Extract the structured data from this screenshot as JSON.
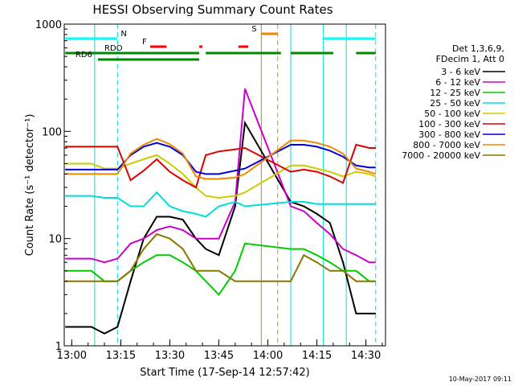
{
  "chart_data": {
    "type": "line",
    "title": "HESSI Observing Summary Count Rates",
    "xlabel": "Start Time (17-Sep-14 12:57:42)",
    "ylabel": "Count Rate (s⁻¹ detector⁻¹)",
    "yscale": "log",
    "ylim": [
      1,
      1000
    ],
    "xlim": [
      "12:57:42",
      "14:36:00"
    ],
    "x_ticks": [
      "13:00",
      "13:15",
      "13:30",
      "13:45",
      "14:00",
      "14:15",
      "14:30"
    ],
    "y_ticks": [
      "1",
      "10",
      "100",
      "1000"
    ],
    "grid": false,
    "legend_position": "right",
    "legend_header": [
      "Det 1,3,6,9,",
      "FDecim 1, Att 0"
    ],
    "x_sample": [
      "12:58",
      "13:06",
      "13:10",
      "13:14",
      "13:18",
      "13:22",
      "13:26",
      "13:30",
      "13:34",
      "13:38",
      "13:41",
      "13:45",
      "13:50",
      "13:53",
      "14:07",
      "14:11",
      "14:15",
      "14:19",
      "14:23",
      "14:27",
      "14:31",
      "14:33"
    ],
    "series": [
      {
        "name": "3 - 6 keV",
        "color": "#000000",
        "values": [
          1.5,
          1.5,
          1.3,
          1.5,
          4,
          10,
          16,
          16,
          15,
          10,
          8,
          7,
          20,
          120,
          22,
          20,
          17,
          14,
          6,
          2,
          2,
          2
        ]
      },
      {
        "name": "6 - 12 keV",
        "color": "#cc00cc",
        "values": [
          6.5,
          6.5,
          6,
          6.5,
          9,
          10,
          12,
          13,
          12,
          10,
          10,
          10,
          22,
          250,
          20,
          18,
          14,
          11,
          8,
          7,
          6,
          6
        ]
      },
      {
        "name": "12 - 25 keV",
        "color": "#00cc00",
        "values": [
          5,
          5,
          4,
          4,
          5,
          6,
          7,
          7,
          6,
          5,
          4,
          3,
          5,
          9,
          8,
          8,
          7,
          6,
          5,
          5,
          4,
          4
        ]
      },
      {
        "name": "25 - 50 keV",
        "color": "#00dddd",
        "values": [
          25,
          25,
          24,
          24,
          20,
          20,
          27,
          20,
          18,
          17,
          16,
          20,
          22,
          20,
          22,
          22,
          21,
          21,
          21,
          21,
          21,
          21
        ]
      },
      {
        "name": "50 - 100 keV",
        "color": "#cccc00",
        "values": [
          50,
          50,
          45,
          45,
          50,
          55,
          60,
          50,
          40,
          30,
          25,
          24,
          25,
          27,
          48,
          48,
          45,
          42,
          38,
          42,
          40,
          38
        ]
      },
      {
        "name": "100 - 300 keV",
        "color": "#dd0000",
        "values": [
          72,
          72,
          72,
          72,
          35,
          43,
          55,
          42,
          35,
          30,
          60,
          65,
          68,
          70,
          42,
          44,
          42,
          38,
          33,
          75,
          70,
          70
        ]
      },
      {
        "name": "300 - 800 keV",
        "color": "#0000dd",
        "values": [
          44,
          44,
          44,
          44,
          60,
          72,
          78,
          72,
          60,
          42,
          40,
          40,
          43,
          45,
          75,
          75,
          72,
          66,
          58,
          48,
          46,
          46
        ]
      },
      {
        "name": "800 - 7000 keV",
        "color": "#ee8800",
        "values": [
          40,
          40,
          40,
          40,
          62,
          75,
          85,
          76,
          62,
          38,
          36,
          36,
          37,
          40,
          82,
          82,
          78,
          72,
          62,
          45,
          42,
          40
        ]
      },
      {
        "name": "7000 - 20000 keV",
        "color": "#887700",
        "values": [
          4,
          4,
          4,
          4,
          5,
          8,
          11,
          10,
          8,
          5,
          5,
          5,
          4,
          4,
          4,
          7,
          6,
          5,
          5,
          4,
          4,
          4
        ]
      }
    ],
    "state_bars": [
      {
        "label": "N",
        "color": "#00ffff",
        "segments": [
          [
            "12:58",
            "13:14"
          ],
          [
            "14:17",
            "14:33"
          ]
        ]
      },
      {
        "label": "F",
        "color": "#ff0000",
        "segments": [
          [
            "13:24",
            "13:29"
          ],
          [
            "13:39",
            "13:40"
          ],
          [
            "13:51",
            "13:54"
          ]
        ]
      },
      {
        "label": "S",
        "color": "#ee8800",
        "segments": [
          [
            "13:58",
            "14:03"
          ]
        ]
      },
      {
        "label": "RDO",
        "color": "#008800",
        "segments": [
          [
            "12:58",
            "13:39"
          ],
          [
            "13:41",
            "14:04"
          ],
          [
            "14:07",
            "14:20"
          ],
          [
            "14:27",
            "14:33"
          ]
        ]
      },
      {
        "label": "RD6",
        "color": "#008800",
        "segments": [
          [
            "13:08",
            "13:39"
          ]
        ]
      }
    ],
    "vlines": [
      {
        "time": "13:14",
        "color": "#00dddd",
        "dash": true
      },
      {
        "time": "13:07",
        "color": "#00dddd",
        "dash": false
      },
      {
        "time": "13:58",
        "color": "#cc8800",
        "dash": false
      },
      {
        "time": "14:03",
        "color": "#ee8800",
        "dash": true
      },
      {
        "time": "14:07",
        "color": "#00dddd",
        "dash": false
      },
      {
        "time": "14:17",
        "color": "#00dddd",
        "dash": false
      },
      {
        "time": "14:24",
        "color": "#00dddd",
        "dash": false
      },
      {
        "time": "14:33",
        "color": "#00dddd",
        "dash": true
      }
    ]
  },
  "timestamp": "10-May-2017 09:11"
}
